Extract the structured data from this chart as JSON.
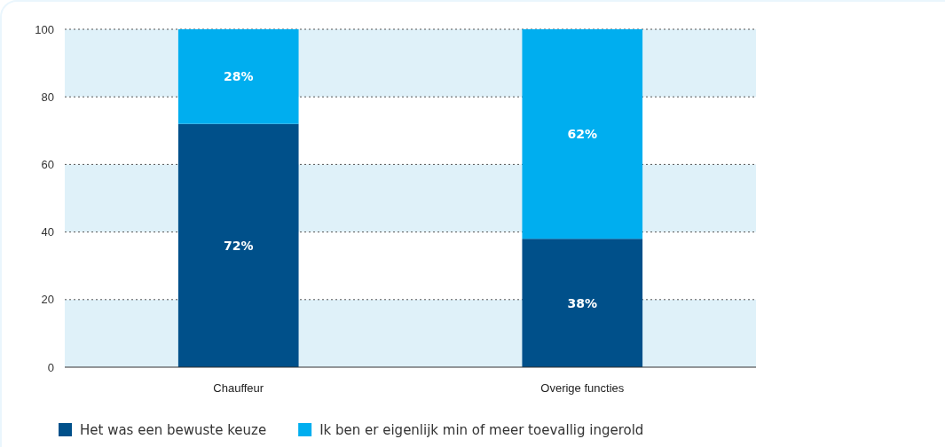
{
  "chart_data": {
    "type": "bar",
    "stacked": true,
    "categories": [
      "Chauffeur",
      "Overige functies"
    ],
    "series": [
      {
        "name": "Het was een bewuste keuze",
        "color": "#00508a",
        "values": [
          72,
          38
        ],
        "value_labels": [
          "72%",
          "38%"
        ]
      },
      {
        "name": "Ik ben er eigenlijk min of meer toevallig ingerold",
        "color": "#00aeef",
        "values": [
          28,
          62
        ],
        "value_labels": [
          "28%",
          "62%"
        ]
      }
    ],
    "ylim": [
      0,
      100
    ],
    "yticks": [
      0,
      20,
      40,
      60,
      80,
      100
    ],
    "grid": "y",
    "legend": "bottom left",
    "bands": [
      {
        "axis": "y",
        "from": 0,
        "to": 20,
        "color": "#dff1f9"
      },
      {
        "axis": "y",
        "from": 40,
        "to": 60,
        "color": "#dff1f9"
      },
      {
        "axis": "y",
        "from": 80,
        "to": 100,
        "color": "#dff1f9"
      }
    ]
  }
}
